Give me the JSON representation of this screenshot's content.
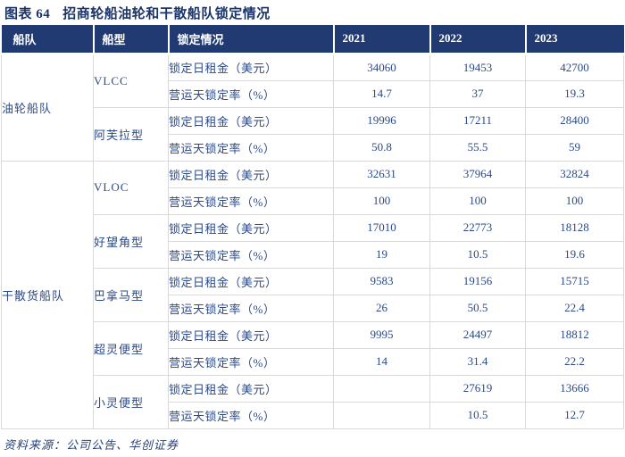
{
  "figure": {
    "label": "图表 64",
    "title": "招商轮船油轮和干散船队锁定情况"
  },
  "source_note": "资料来源：公司公告、华创证券",
  "colors": {
    "header_bg": "#213a72",
    "header_text": "#ffffff",
    "body_text": "#2c4a88",
    "title_text": "#1b3468",
    "grid_border": "#d9d9d9"
  },
  "chart_data": {
    "type": "table",
    "title": "招商轮船油轮和干散船队锁定情况",
    "columns": [
      "船队",
      "船型",
      "锁定情况",
      "2021",
      "2022",
      "2023"
    ],
    "metrics": [
      "锁定日租金（美元）",
      "营运天锁定率（%）"
    ],
    "groups": [
      {
        "fleet": "油轮船队",
        "types": [
          {
            "name": "VLCC",
            "values": [
              [
                "34060",
                "19453",
                "42700"
              ],
              [
                "14.7",
                "37",
                "19.3"
              ]
            ]
          },
          {
            "name": "阿芙拉型",
            "values": [
              [
                "19996",
                "17211",
                "28400"
              ],
              [
                "50.8",
                "55.5",
                "59"
              ]
            ]
          }
        ]
      },
      {
        "fleet": "干散货船队",
        "types": [
          {
            "name": "VLOC",
            "values": [
              [
                "32631",
                "37964",
                "32824"
              ],
              [
                "100",
                "100",
                "100"
              ]
            ]
          },
          {
            "name": "好望角型",
            "values": [
              [
                "17010",
                "22773",
                "18128"
              ],
              [
                "19",
                "10.5",
                "19.6"
              ]
            ]
          },
          {
            "name": "巴拿马型",
            "values": [
              [
                "9583",
                "19156",
                "15715"
              ],
              [
                "26",
                "50.5",
                "22.4"
              ]
            ]
          },
          {
            "name": "超灵便型",
            "values": [
              [
                "9995",
                "24497",
                "18812"
              ],
              [
                "14",
                "31.4",
                "22.2"
              ]
            ]
          },
          {
            "name": "小灵便型",
            "values": [
              [
                "",
                "27619",
                "13666"
              ],
              [
                "",
                "10.5",
                "12.7"
              ]
            ]
          }
        ]
      }
    ]
  }
}
